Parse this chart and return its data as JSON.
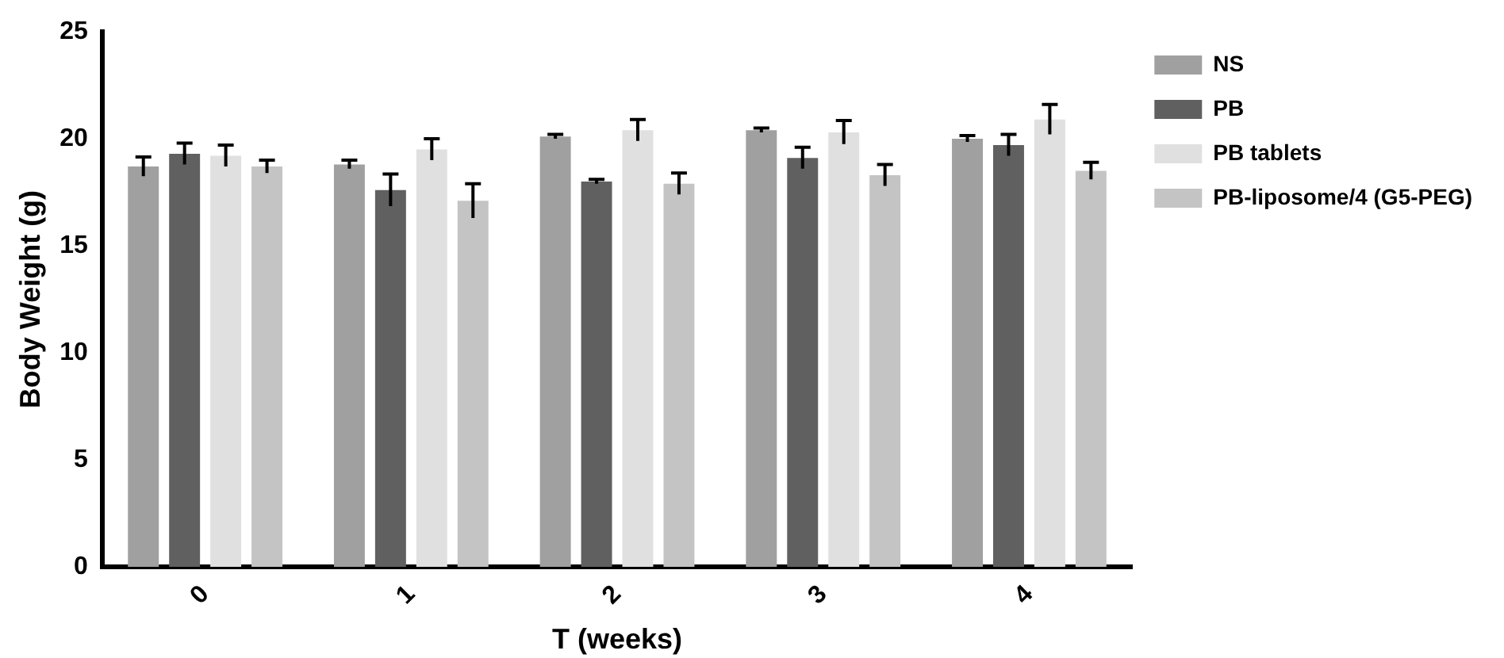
{
  "chart_data": {
    "type": "bar",
    "xlabel": "T (weeks)",
    "ylabel": "Body Weight (g)",
    "categories": [
      "0",
      "1",
      "2",
      "3",
      "4"
    ],
    "series": [
      {
        "name": "NS",
        "color": "#a0a0a0",
        "values": [
          18.7,
          18.8,
          20.1,
          20.4,
          20.0
        ],
        "errors": [
          0.45,
          0.2,
          0.1,
          0.1,
          0.15
        ]
      },
      {
        "name": "PB",
        "color": "#606060",
        "values": [
          19.3,
          17.6,
          18.0,
          19.1,
          19.7
        ],
        "errors": [
          0.5,
          0.75,
          0.1,
          0.5,
          0.5
        ]
      },
      {
        "name": "PB tablets",
        "color": "#e0e0e0",
        "values": [
          19.2,
          19.5,
          20.4,
          20.3,
          20.9
        ],
        "errors": [
          0.5,
          0.5,
          0.5,
          0.55,
          0.7
        ]
      },
      {
        "name": "PB-liposome/4 (G5-PEG)",
        "color": "#c4c4c4",
        "values": [
          18.7,
          17.1,
          17.9,
          18.3,
          18.5
        ],
        "errors": [
          0.3,
          0.8,
          0.5,
          0.5,
          0.4
        ]
      }
    ],
    "ylim": [
      0,
      25
    ],
    "yticks": [
      0,
      5,
      10,
      15,
      20,
      25
    ],
    "grid": false,
    "legend": "right"
  }
}
